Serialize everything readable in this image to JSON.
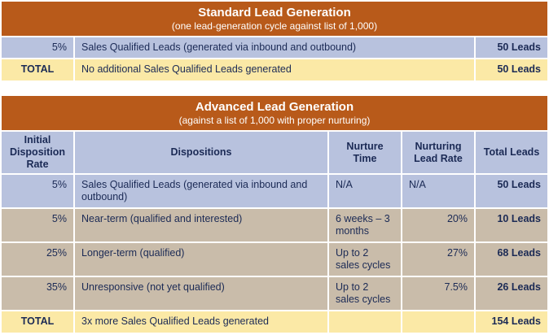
{
  "standard": {
    "title": "Standard Lead Generation",
    "subtitle": "(one lead-generation cycle against list of 1,000)",
    "rows": [
      {
        "rate": "5%",
        "description": "Sales Qualified Leads (generated via inbound and outbound)",
        "total": "50 Leads"
      }
    ],
    "total_row": {
      "label": "TOTAL",
      "description": "No additional Sales Qualified Leads generated",
      "total": "50 Leads"
    }
  },
  "advanced": {
    "title": "Advanced Lead Generation",
    "subtitle": "(against a list of 1,000 with proper nurturing)",
    "headers": {
      "rate": "Initial Disposition Rate",
      "dispositions": "Dispositions",
      "nurture_time": "Nurture Time",
      "nurture_rate": "Nurturing Lead Rate",
      "total": "Total Leads"
    },
    "rows": [
      {
        "rate": "5%",
        "disposition": "Sales Qualified Leads (generated via inbound and outbound)",
        "time": "N/A",
        "nurture_rate": "N/A",
        "total": "50 Leads"
      },
      {
        "rate": "5%",
        "disposition": "Near-term (qualified and interested)",
        "time": "6 weeks – 3 months",
        "nurture_rate": "20%",
        "total": "10 Leads"
      },
      {
        "rate": "25%",
        "disposition": "Longer-term (qualified)",
        "time": "Up to 2 sales cycles",
        "nurture_rate": "27%",
        "total": "68 Leads"
      },
      {
        "rate": "35%",
        "disposition": "Unresponsive (not yet qualified)",
        "time": "Up to 2 sales cycles",
        "nurture_rate": "7.5%",
        "total": "26 Leads"
      }
    ],
    "total_row": {
      "label": "TOTAL",
      "description": "3x more Sales Qualified Leads generated",
      "total": "154 Leads"
    }
  }
}
